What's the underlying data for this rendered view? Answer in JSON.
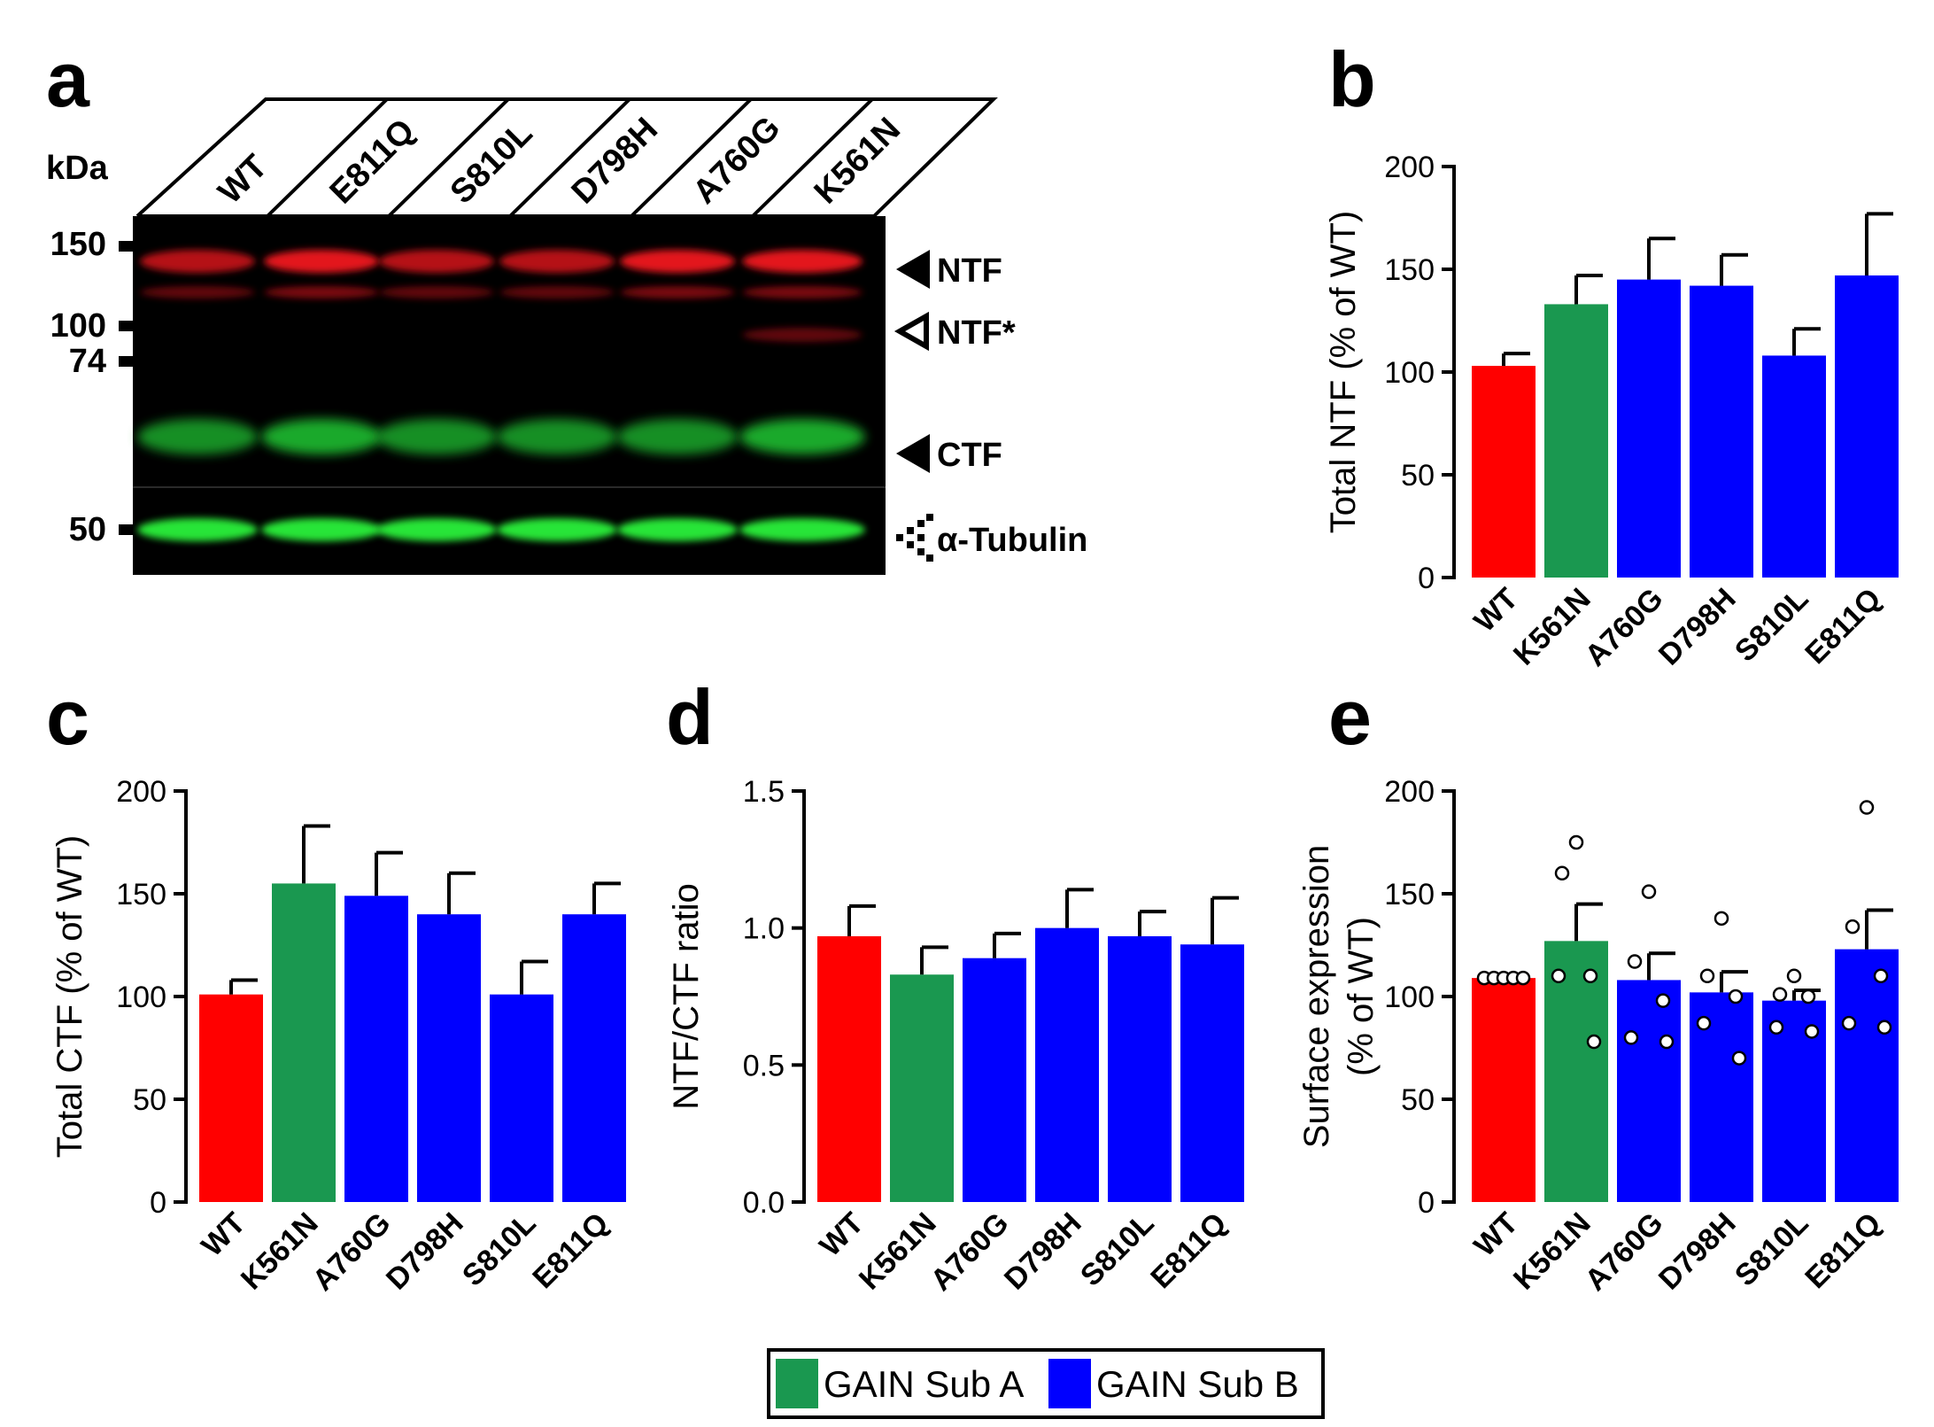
{
  "blot": {
    "panel_letter": "a",
    "kda_label": "kDa",
    "markers": [
      "150",
      "100",
      "74",
      "50"
    ],
    "lanes": [
      "WT",
      "E811Q",
      "S810L",
      "D798H",
      "A760G",
      "K561N"
    ],
    "band_labels": [
      "NTF",
      "NTF*",
      "CTF",
      "α-Tubulin"
    ]
  },
  "legend": {
    "items": [
      {
        "label": "GAIN Sub A",
        "color": "#1a9850"
      },
      {
        "label": "GAIN Sub B",
        "color": "#0000ff"
      }
    ]
  },
  "colors": {
    "wt": "#ff0000",
    "sub_a": "#1a9850",
    "sub_b": "#0000ff"
  },
  "chart_data": [
    {
      "panel": "b",
      "type": "bar",
      "ylabel": "Total NTF (% of WT)",
      "categories": [
        "WT",
        "K561N",
        "A760G",
        "D798H",
        "S810L",
        "E811Q"
      ],
      "values": [
        103,
        133,
        145,
        142,
        108,
        147
      ],
      "errors": [
        6,
        14,
        20,
        15,
        13,
        30
      ],
      "ylim": [
        0,
        200
      ],
      "yticks": [
        "0",
        "50",
        "100",
        "150",
        "200"
      ]
    },
    {
      "panel": "c",
      "type": "bar",
      "ylabel": "Total CTF (% of WT)",
      "categories": [
        "WT",
        "K561N",
        "A760G",
        "D798H",
        "S810L",
        "E811Q"
      ],
      "values": [
        101,
        155,
        149,
        140,
        101,
        140
      ],
      "errors": [
        7,
        28,
        21,
        20,
        16,
        15
      ],
      "ylim": [
        0,
        200
      ],
      "yticks": [
        "0",
        "50",
        "100",
        "150",
        "200"
      ]
    },
    {
      "panel": "d",
      "type": "bar",
      "ylabel": "NTF/CTF ratio",
      "categories": [
        "WT",
        "K561N",
        "A760G",
        "D798H",
        "S810L",
        "E811Q"
      ],
      "values": [
        0.97,
        0.83,
        0.89,
        1.0,
        0.97,
        0.94
      ],
      "errors": [
        0.11,
        0.1,
        0.09,
        0.14,
        0.09,
        0.17
      ],
      "ylim": [
        0,
        1.5
      ],
      "yticks": [
        "0.0",
        "0.5",
        "1.0",
        "1.5"
      ]
    },
    {
      "panel": "e",
      "type": "bar",
      "ylabel": "Surface expression (% of WT)",
      "ylabel_lines": [
        "Surface expression",
        "(% of WT)"
      ],
      "categories": [
        "WT",
        "K561N",
        "A760G",
        "D798H",
        "S810L",
        "E811Q"
      ],
      "values": [
        109,
        127,
        108,
        102,
        98,
        123
      ],
      "errors": [
        0,
        18,
        13,
        10,
        5,
        19
      ],
      "points": [
        [
          109,
          109,
          109,
          109,
          109
        ],
        [
          175,
          160,
          110,
          110,
          78
        ],
        [
          151,
          117,
          98,
          80,
          78
        ],
        [
          138,
          110,
          100,
          87,
          70
        ],
        [
          110,
          101,
          100,
          85,
          83
        ],
        [
          192,
          134,
          110,
          87,
          85
        ]
      ],
      "ylim": [
        0,
        200
      ],
      "yticks": [
        "0",
        "50",
        "100",
        "150",
        "200"
      ]
    }
  ]
}
